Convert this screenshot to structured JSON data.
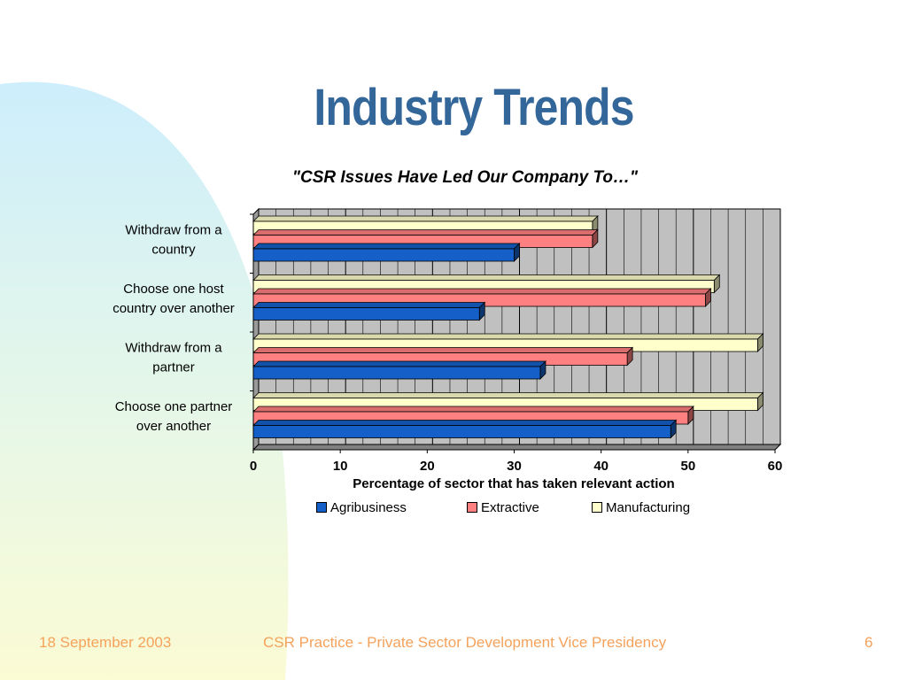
{
  "slide": {
    "title": "Industry Trends",
    "footer_date": "18 September 2003",
    "footer_center": "CSR Practice - Private Sector Development Vice Presidency",
    "page_number": "6"
  },
  "colors": {
    "title": "#336699",
    "footer": "#f4a25c",
    "plot_background": "#c0c0c0",
    "agribusiness": "#1560c8",
    "extractive": "#ff8080",
    "manufacturing": "#ffffcc"
  },
  "chart_data": {
    "type": "bar",
    "orientation": "horizontal",
    "style": "3d-clustered",
    "title": "\"CSR Issues Have Led Our Company To…\"",
    "xlabel": "Percentage of sector that has taken relevant action",
    "ylabel": "",
    "xlim": [
      0,
      60
    ],
    "xticks": [
      0,
      10,
      20,
      30,
      40,
      50,
      60
    ],
    "categories": [
      [
        "Withdraw from a",
        "country"
      ],
      [
        "Choose one host",
        "country over another"
      ],
      [
        "Withdraw from a",
        "partner"
      ],
      [
        "Choose one partner",
        "over another"
      ]
    ],
    "series": [
      {
        "name": "Agribusiness",
        "color": "#1560c8",
        "values": [
          30,
          26,
          33,
          48
        ]
      },
      {
        "name": "Extractive",
        "color": "#ff8080",
        "values": [
          39,
          52,
          43,
          50
        ]
      },
      {
        "name": "Manufacturing",
        "color": "#ffffcc",
        "values": [
          39,
          53,
          58,
          58
        ]
      }
    ],
    "grid": true,
    "legend_position": "bottom"
  }
}
